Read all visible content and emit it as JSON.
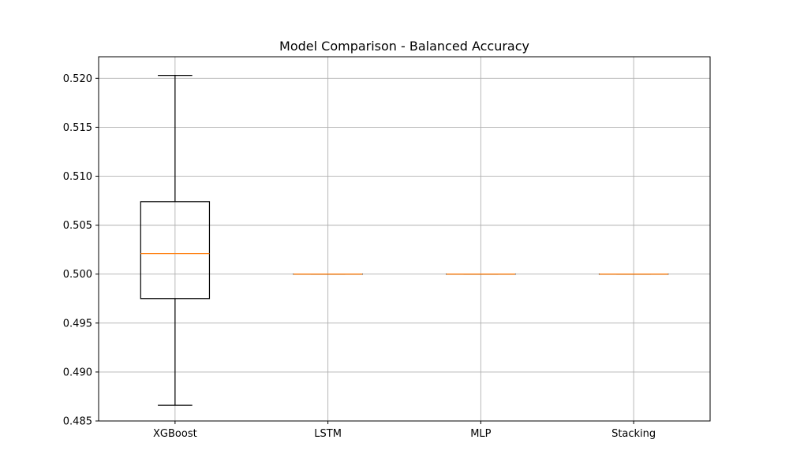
{
  "chart_data": {
    "type": "box",
    "title": "Model Comparison - Balanced Accuracy",
    "xlabel": "",
    "ylabel": "",
    "ylim": [
      0.485,
      0.5222
    ],
    "yticks": [
      0.485,
      0.49,
      0.495,
      0.5,
      0.505,
      0.51,
      0.515,
      0.52
    ],
    "ytick_labels": [
      "0.485",
      "0.490",
      "0.495",
      "0.500",
      "0.505",
      "0.510",
      "0.515",
      "0.520"
    ],
    "grid": true,
    "categories": [
      "XGBoost",
      "LSTM",
      "MLP",
      "Stacking"
    ],
    "boxes": [
      {
        "category": "XGBoost",
        "whisker_low": 0.4866,
        "q1": 0.4975,
        "median": 0.5021,
        "q3": 0.5074,
        "whisker_high": 0.5203
      },
      {
        "category": "LSTM",
        "whisker_low": 0.5,
        "q1": 0.5,
        "median": 0.5,
        "q3": 0.5,
        "whisker_high": 0.5
      },
      {
        "category": "MLP",
        "whisker_low": 0.5,
        "q1": 0.5,
        "median": 0.5,
        "q3": 0.5,
        "whisker_high": 0.5
      },
      {
        "category": "Stacking",
        "whisker_low": 0.5,
        "q1": 0.5,
        "median": 0.5,
        "q3": 0.5,
        "whisker_high": 0.5
      }
    ],
    "colors": {
      "box": "#000000",
      "median": "#ff7f0e",
      "grid": "#b0b0b0",
      "axes": "#000000"
    }
  }
}
